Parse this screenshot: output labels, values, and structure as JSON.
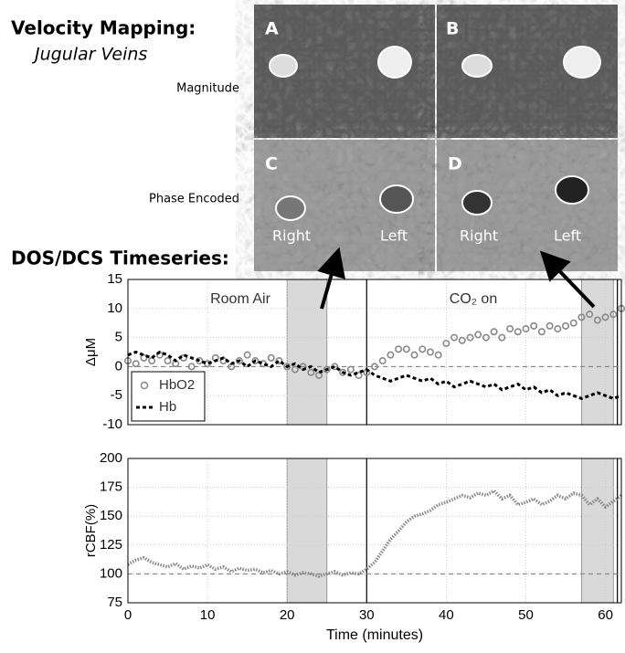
{
  "header": {
    "title": "Velocity Mapping:",
    "subtitle": "Jugular Veins",
    "row_labels": [
      "Magnitude",
      "Phase Encoded"
    ],
    "section": "DOS/DCS Timeseries:"
  },
  "images": [
    {
      "label": "A"
    },
    {
      "label": "B"
    },
    {
      "label": "C",
      "left": "Left",
      "right": "Right"
    },
    {
      "label": "D",
      "left": "Left",
      "right": "Right"
    }
  ],
  "chart_data": [
    {
      "type": "line",
      "ylabel": "ΔμM",
      "annotations": [
        "Room Air",
        "CO₂ on"
      ],
      "xlim": [
        0,
        62
      ],
      "xticks": [
        0,
        10,
        20,
        30,
        40,
        50,
        60
      ],
      "show_xtick_labels": false,
      "ylim": [
        -10,
        15
      ],
      "yticks": [
        -10,
        -5,
        0,
        5,
        10,
        15
      ],
      "grid": true,
      "legend": "lower left",
      "shaded_regions": [
        [
          20,
          25
        ],
        [
          57,
          61
        ]
      ],
      "vlines": [
        30,
        61.5
      ],
      "reference_line": 0,
      "x": [
        0,
        1,
        2,
        3,
        4,
        5,
        6,
        7,
        8,
        9,
        10,
        11,
        12,
        13,
        14,
        15,
        16,
        17,
        18,
        19,
        20,
        21,
        22,
        23,
        24,
        25,
        26,
        27,
        28,
        29,
        30,
        31,
        32,
        33,
        34,
        35,
        36,
        37,
        38,
        39,
        40,
        41,
        42,
        43,
        44,
        45,
        46,
        47,
        48,
        49,
        50,
        51,
        52,
        53,
        54,
        55,
        56,
        57,
        58,
        59,
        60,
        61,
        62
      ],
      "series": [
        {
          "name": "HbO2",
          "color": "#888888",
          "style": "circles",
          "values": [
            1,
            0.5,
            1.5,
            1,
            2,
            1,
            0.5,
            1.5,
            0,
            1,
            0.5,
            1.5,
            1,
            0,
            1,
            2,
            1,
            0.5,
            1.5,
            1,
            0,
            -0.5,
            0,
            -1,
            -1.5,
            -0.5,
            0,
            -1,
            -0.5,
            -1.5,
            -1,
            0,
            1,
            2,
            3,
            3,
            2,
            3,
            2.5,
            2,
            4,
            5,
            4.5,
            5,
            5.5,
            5,
            6,
            5,
            6.5,
            6,
            6.5,
            7,
            6,
            7,
            6.5,
            7,
            7.5,
            8.5,
            9,
            8,
            8.5,
            9,
            10
          ]
        },
        {
          "name": "Hb",
          "color": "#000000",
          "style": "dashed",
          "values": [
            2,
            2.5,
            2,
            1.5,
            2.5,
            2,
            1,
            2,
            1.5,
            1,
            0.5,
            1,
            1.5,
            0.5,
            1,
            0,
            1,
            0.5,
            0,
            1,
            0,
            0.5,
            -0.5,
            0,
            -1,
            -0.5,
            0,
            -1,
            -1.5,
            -1,
            -0.5,
            -1.5,
            -2,
            -2.5,
            -2,
            -1.5,
            -2,
            -2.5,
            -2,
            -3,
            -2.5,
            -3.5,
            -3,
            -2.5,
            -3,
            -3.5,
            -3,
            -4,
            -3.5,
            -3,
            -4,
            -3.5,
            -4.5,
            -4,
            -5,
            -4.5,
            -5,
            -5.5,
            -5,
            -4.5,
            -5,
            -5.5,
            -5
          ]
        }
      ]
    },
    {
      "type": "line",
      "ylabel": "rCBF(%)",
      "xlabel": "Time (minutes)",
      "xlim": [
        0,
        62
      ],
      "xticks": [
        0,
        10,
        20,
        30,
        40,
        50,
        60
      ],
      "show_xtick_labels": true,
      "ylim": [
        75,
        200
      ],
      "yticks": [
        75,
        100,
        125,
        150,
        175,
        200
      ],
      "grid": true,
      "shaded_regions": [
        [
          20,
          25
        ],
        [
          57,
          61
        ]
      ],
      "vlines": [
        30,
        61.5
      ],
      "reference_line": 100,
      "x": [
        0,
        1,
        2,
        3,
        4,
        5,
        6,
        7,
        8,
        9,
        10,
        11,
        12,
        13,
        14,
        15,
        16,
        17,
        18,
        19,
        20,
        21,
        22,
        23,
        24,
        25,
        26,
        27,
        28,
        29,
        30,
        31,
        32,
        33,
        34,
        35,
        36,
        37,
        38,
        39,
        40,
        41,
        42,
        43,
        44,
        45,
        46,
        47,
        48,
        49,
        50,
        51,
        52,
        53,
        54,
        55,
        56,
        57,
        58,
        59,
        60,
        61,
        62
      ],
      "series": [
        {
          "color": "#888888",
          "style": "dotted",
          "values": [
            108,
            112,
            114,
            110,
            108,
            106,
            109,
            104,
            107,
            105,
            108,
            104,
            106,
            102,
            105,
            103,
            104,
            101,
            103,
            100,
            102,
            99,
            101,
            100,
            98,
            100,
            102,
            99,
            101,
            100,
            104,
            110,
            120,
            130,
            137,
            145,
            150,
            152,
            155,
            160,
            162,
            165,
            168,
            166,
            170,
            168,
            172,
            165,
            168,
            160,
            162,
            165,
            160,
            163,
            168,
            165,
            170,
            168,
            160,
            165,
            158,
            163,
            168
          ]
        }
      ]
    }
  ]
}
